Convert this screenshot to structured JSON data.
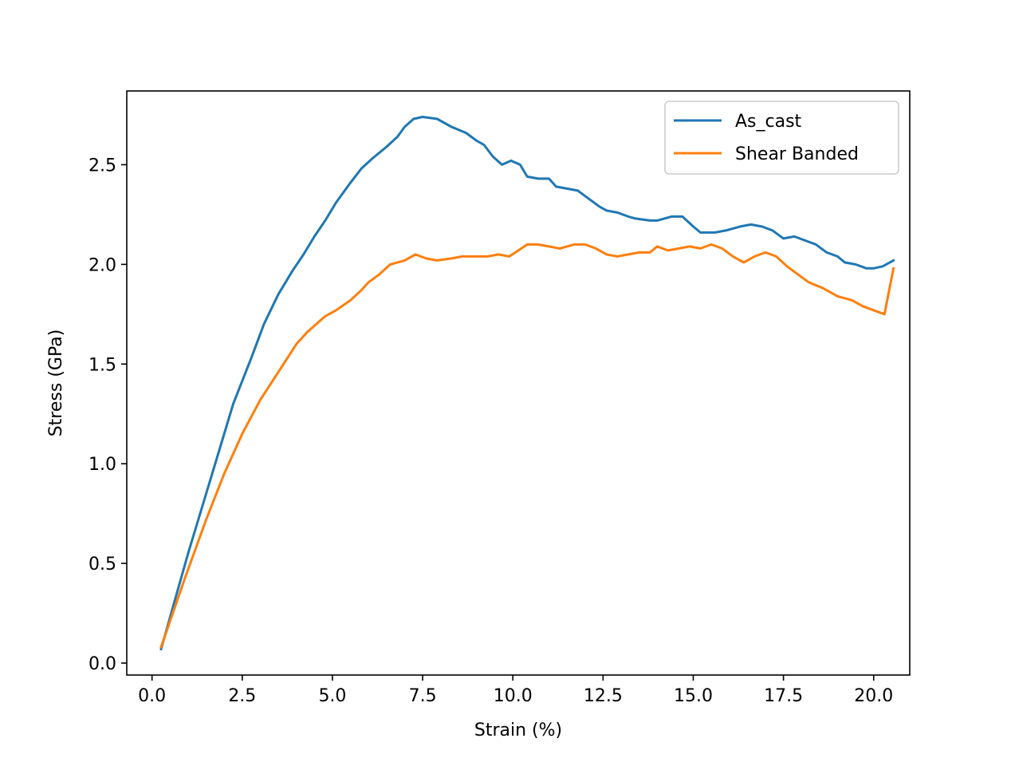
{
  "chart_data": {
    "type": "line",
    "title": "",
    "xlabel": "Strain (%)",
    "ylabel": "Stress (GPa)",
    "xlim": [
      -0.7,
      21.0
    ],
    "ylim": [
      -0.06,
      2.87
    ],
    "x_ticks": [
      0.0,
      2.5,
      5.0,
      7.5,
      10.0,
      12.5,
      15.0,
      17.5,
      20.0
    ],
    "x_tick_labels": [
      "0.0",
      "2.5",
      "5.0",
      "7.5",
      "10.0",
      "12.5",
      "15.0",
      "17.5",
      "20.0"
    ],
    "y_ticks": [
      0.0,
      0.5,
      1.0,
      1.5,
      2.0,
      2.5
    ],
    "y_tick_labels": [
      "0.0",
      "0.5",
      "1.0",
      "1.5",
      "2.0",
      "2.5"
    ],
    "grid": false,
    "legend_position": "top-right",
    "series": [
      {
        "name": "As_cast",
        "color": "#1f77b4",
        "points": [
          [
            0.25,
            0.07
          ],
          [
            1.0,
            0.55
          ],
          [
            1.75,
            1.0
          ],
          [
            2.25,
            1.3
          ],
          [
            2.75,
            1.53
          ],
          [
            3.1,
            1.7
          ],
          [
            3.5,
            1.85
          ],
          [
            3.9,
            1.97
          ],
          [
            4.2,
            2.05
          ],
          [
            4.5,
            2.14
          ],
          [
            4.8,
            2.22
          ],
          [
            5.1,
            2.31
          ],
          [
            5.5,
            2.41
          ],
          [
            5.8,
            2.48
          ],
          [
            6.1,
            2.53
          ],
          [
            6.5,
            2.59
          ],
          [
            6.8,
            2.64
          ],
          [
            7.0,
            2.69
          ],
          [
            7.25,
            2.73
          ],
          [
            7.5,
            2.74
          ],
          [
            7.9,
            2.73
          ],
          [
            8.3,
            2.69
          ],
          [
            8.7,
            2.66
          ],
          [
            9.0,
            2.62
          ],
          [
            9.2,
            2.6
          ],
          [
            9.45,
            2.54
          ],
          [
            9.7,
            2.5
          ],
          [
            9.95,
            2.52
          ],
          [
            10.2,
            2.5
          ],
          [
            10.4,
            2.44
          ],
          [
            10.7,
            2.43
          ],
          [
            11.0,
            2.43
          ],
          [
            11.2,
            2.39
          ],
          [
            11.5,
            2.38
          ],
          [
            11.8,
            2.37
          ],
          [
            12.1,
            2.33
          ],
          [
            12.4,
            2.29
          ],
          [
            12.6,
            2.27
          ],
          [
            12.9,
            2.26
          ],
          [
            13.2,
            2.24
          ],
          [
            13.4,
            2.23
          ],
          [
            13.8,
            2.22
          ],
          [
            14.0,
            2.22
          ],
          [
            14.4,
            2.24
          ],
          [
            14.7,
            2.24
          ],
          [
            15.0,
            2.19
          ],
          [
            15.2,
            2.16
          ],
          [
            15.6,
            2.16
          ],
          [
            15.9,
            2.17
          ],
          [
            16.3,
            2.19
          ],
          [
            16.6,
            2.2
          ],
          [
            16.9,
            2.19
          ],
          [
            17.2,
            2.17
          ],
          [
            17.5,
            2.13
          ],
          [
            17.8,
            2.14
          ],
          [
            18.1,
            2.12
          ],
          [
            18.4,
            2.1
          ],
          [
            18.7,
            2.06
          ],
          [
            19.0,
            2.04
          ],
          [
            19.2,
            2.01
          ],
          [
            19.5,
            2.0
          ],
          [
            19.8,
            1.98
          ],
          [
            20.0,
            1.98
          ],
          [
            20.25,
            1.99
          ],
          [
            20.55,
            2.02
          ]
        ]
      },
      {
        "name": "Shear Banded",
        "color": "#ff7f0e",
        "points": [
          [
            0.25,
            0.08
          ],
          [
            0.9,
            0.42
          ],
          [
            1.5,
            0.72
          ],
          [
            2.0,
            0.95
          ],
          [
            2.5,
            1.15
          ],
          [
            3.0,
            1.32
          ],
          [
            3.5,
            1.46
          ],
          [
            4.0,
            1.6
          ],
          [
            4.3,
            1.66
          ],
          [
            4.8,
            1.74
          ],
          [
            5.1,
            1.77
          ],
          [
            5.5,
            1.82
          ],
          [
            5.8,
            1.87
          ],
          [
            6.0,
            1.91
          ],
          [
            6.3,
            1.95
          ],
          [
            6.6,
            2.0
          ],
          [
            7.0,
            2.02
          ],
          [
            7.3,
            2.05
          ],
          [
            7.6,
            2.03
          ],
          [
            7.9,
            2.02
          ],
          [
            8.3,
            2.03
          ],
          [
            8.6,
            2.04
          ],
          [
            9.0,
            2.04
          ],
          [
            9.3,
            2.04
          ],
          [
            9.6,
            2.05
          ],
          [
            9.9,
            2.04
          ],
          [
            10.15,
            2.07
          ],
          [
            10.4,
            2.1
          ],
          [
            10.7,
            2.1
          ],
          [
            11.0,
            2.09
          ],
          [
            11.3,
            2.08
          ],
          [
            11.7,
            2.1
          ],
          [
            12.0,
            2.1
          ],
          [
            12.3,
            2.08
          ],
          [
            12.6,
            2.05
          ],
          [
            12.9,
            2.04
          ],
          [
            13.2,
            2.05
          ],
          [
            13.5,
            2.06
          ],
          [
            13.8,
            2.06
          ],
          [
            14.0,
            2.09
          ],
          [
            14.3,
            2.07
          ],
          [
            14.6,
            2.08
          ],
          [
            14.9,
            2.09
          ],
          [
            15.2,
            2.08
          ],
          [
            15.5,
            2.1
          ],
          [
            15.8,
            2.08
          ],
          [
            16.1,
            2.04
          ],
          [
            16.4,
            2.01
          ],
          [
            16.7,
            2.04
          ],
          [
            17.0,
            2.06
          ],
          [
            17.3,
            2.04
          ],
          [
            17.6,
            1.99
          ],
          [
            17.9,
            1.95
          ],
          [
            18.2,
            1.91
          ],
          [
            18.6,
            1.88
          ],
          [
            19.0,
            1.84
          ],
          [
            19.4,
            1.82
          ],
          [
            19.7,
            1.79
          ],
          [
            20.0,
            1.77
          ],
          [
            20.3,
            1.75
          ],
          [
            20.55,
            1.98
          ]
        ]
      }
    ]
  }
}
